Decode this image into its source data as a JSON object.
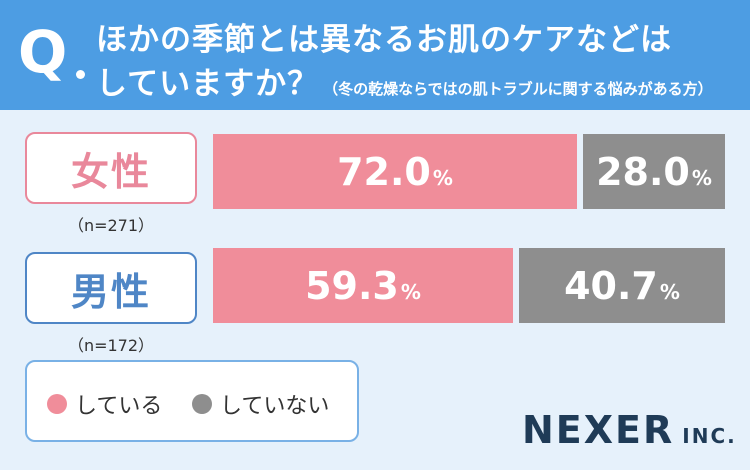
{
  "header": {
    "q_mark": "Q",
    "line1": "ほかの季節とは異なるお肌のケアなどは",
    "line2_main": "していますか？",
    "line2_sub": "（冬の乾燥ならではの肌トラブルに関する悩みがある方）"
  },
  "colors": {
    "header_bg": "#4d9de3",
    "doing": "#f08d9a",
    "not_doing": "#8e8e8e",
    "female_accent": "#e9889b",
    "male_accent": "#4f86c6",
    "background": "#e6f1fb"
  },
  "chart_data": {
    "type": "bar",
    "stacked": true,
    "orientation": "horizontal",
    "unit": "%",
    "categories": [
      {
        "label": "女性",
        "n": "（n=271）"
      },
      {
        "label": "男性",
        "n": "（n=172）"
      }
    ],
    "series": [
      {
        "name": "している",
        "values": [
          72.0,
          59.3
        ],
        "labels": [
          "72.0",
          "59.3"
        ]
      },
      {
        "name": "していない",
        "values": [
          28.0,
          40.7
        ],
        "labels": [
          "28.0",
          "40.7"
        ]
      }
    ]
  },
  "legend": {
    "items": [
      {
        "label": "している"
      },
      {
        "label": "していない"
      }
    ]
  },
  "logo": {
    "main": "NEXER",
    "sub": "INC."
  }
}
